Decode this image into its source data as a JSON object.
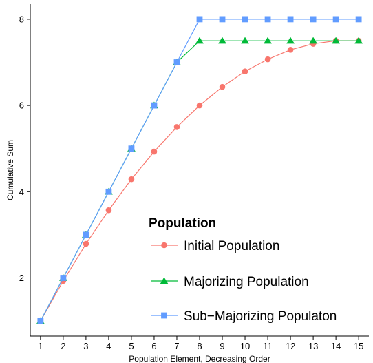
{
  "chart_data": {
    "type": "line",
    "title": "",
    "xlabel": "Population Element, Decreasing Order",
    "ylabel": "Cumulative Sum",
    "x": [
      1,
      2,
      3,
      4,
      5,
      6,
      7,
      8,
      9,
      10,
      11,
      12,
      13,
      14,
      15
    ],
    "xlim": [
      0.55,
      15.45
    ],
    "ylim": [
      0.65,
      8.35
    ],
    "x_ticks": [
      "1",
      "2",
      "3",
      "4",
      "5",
      "6",
      "7",
      "8",
      "9",
      "10",
      "11",
      "12",
      "13",
      "14",
      "15"
    ],
    "y_ticks": [
      "2",
      "4",
      "6",
      "8"
    ],
    "grid": false,
    "legend": {
      "title": "Population",
      "placement": "inside-bottom-right"
    },
    "series": [
      {
        "name": "Initial Population",
        "color": "#f8766d",
        "marker": "circle",
        "values": [
          1.0,
          1.93,
          2.79,
          3.57,
          4.29,
          4.93,
          5.5,
          6.0,
          6.43,
          6.79,
          7.07,
          7.29,
          7.43,
          7.5,
          7.5
        ]
      },
      {
        "name": "Majorizing Population",
        "color": "#00ba38",
        "marker": "triangle",
        "values": [
          1,
          2,
          3,
          4,
          5,
          6,
          7,
          7.5,
          7.5,
          7.5,
          7.5,
          7.5,
          7.5,
          7.5,
          7.5
        ]
      },
      {
        "name": "Sub−Majorizing Populaton",
        "color": "#619cff",
        "marker": "square",
        "values": [
          1,
          2,
          3,
          4,
          5,
          6,
          7,
          8,
          8,
          8,
          8,
          8,
          8,
          8,
          8
        ]
      }
    ]
  }
}
